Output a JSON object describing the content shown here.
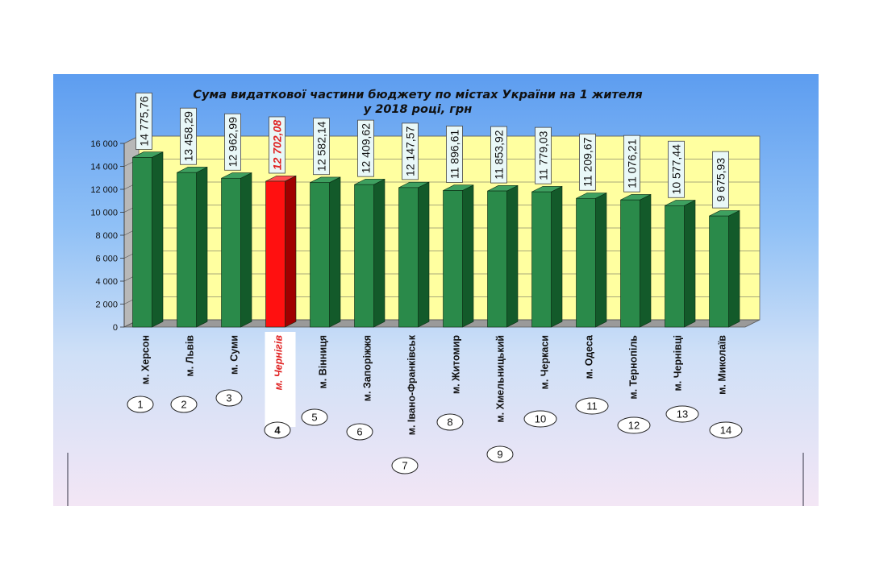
{
  "chart_data": {
    "type": "bar",
    "title_lines": [
      "Сума видаткової частини бюджету по містах України на 1 жителя",
      "у 2018 році, грн"
    ],
    "categories": [
      "м. Херсон",
      "м. Львів",
      "м. Суми",
      "м. Чернігів",
      "м. Вінниця",
      "м. Запоріжжя",
      "м. Івано-Франківськ",
      "м. Житомир",
      "м. Хмельницький",
      "м. Черкаси",
      "м. Одеса",
      "м. Тернопіль",
      "м. Чернівці",
      "м. Миколаїв"
    ],
    "values": [
      14775.76,
      13458.29,
      12962.99,
      12702.08,
      12582.14,
      12409.62,
      12147.57,
      11896.61,
      11853.92,
      11779.03,
      11209.67,
      11076.21,
      10577.44,
      9675.93
    ],
    "value_labels": [
      "14 775,76",
      "13 458,29",
      "12 962,99",
      "12 702,08",
      "12 582,14",
      "12 409,62",
      "12 147,57",
      "11 896,61",
      "11 853,92",
      "11 779,03",
      "11 209,67",
      "11 076,21",
      "10 577,44",
      "9 675,93"
    ],
    "ranks": [
      "1",
      "2",
      "3",
      "4",
      "5",
      "6",
      "7",
      "8",
      "9",
      "10",
      "11",
      "12",
      "13",
      "14"
    ],
    "highlight_index": 3,
    "y_ticks": [
      0,
      2000,
      4000,
      6000,
      8000,
      10000,
      12000,
      14000,
      16000
    ],
    "y_tick_labels": [
      "0",
      "2 000",
      "4 000",
      "6 000",
      "8 000",
      "10 000",
      "12 000",
      "14 000",
      "16 000"
    ],
    "ylim": [
      0,
      16000
    ],
    "grid": true,
    "xlabel": "",
    "ylabel": "",
    "colors": {
      "bar": "#2a8a4a",
      "bar_side": "#135a2a",
      "bar_top": "#3ea060",
      "highlight": "#ff1010",
      "highlight_side": "#a00000",
      "wall": "#ffffa0",
      "value_box": "#e9f8f8"
    }
  }
}
